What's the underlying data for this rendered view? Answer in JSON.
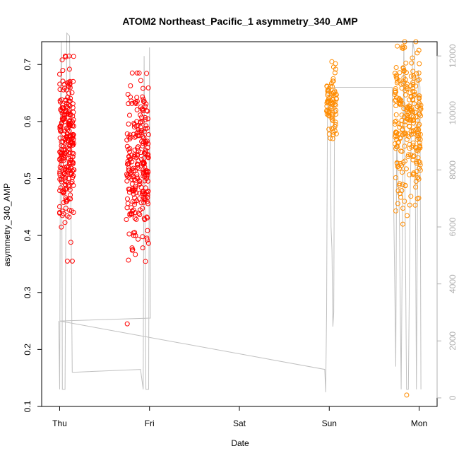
{
  "chart_data": {
    "type": "scatter",
    "title": "ATOM2 Northeast_Pacific_1 asymmetry_340_AMP",
    "xlabel": "Date",
    "ylabel": "asymmetry_340_AMP",
    "x_ticks": [
      {
        "label": "Thu",
        "day": 0
      },
      {
        "label": "Fri",
        "day": 1
      },
      {
        "label": "Sat",
        "day": 2
      },
      {
        "label": "Sun",
        "day": 3
      },
      {
        "label": "Mon",
        "day": 4
      }
    ],
    "xlim": [
      -0.2,
      4.2
    ],
    "ylim": [
      0.1,
      0.74
    ],
    "y_ticks": [
      0.1,
      0.2,
      0.3,
      0.4,
      0.5,
      0.6,
      0.7
    ],
    "y2_ticks": [
      0,
      2000,
      4000,
      6000,
      8000,
      10000,
      12000
    ],
    "y2lim": [
      -300,
      12500
    ],
    "colors": {
      "series_red": "#ff0000",
      "series_orange": "#ff8c00",
      "altitude_line": "#c0c0c0",
      "axis": "#000000",
      "right_axis": "#b0b0b0"
    },
    "series": [
      {
        "color": "red",
        "clusters": [
          {
            "day_start": 0.0,
            "day_end": 0.16,
            "y_mean": 0.56,
            "y_sd": 0.07,
            "y_min": 0.355,
            "y_max": 0.715,
            "n": 260
          },
          {
            "day_start": 0.74,
            "day_end": 0.99,
            "y_mean": 0.52,
            "y_sd": 0.075,
            "y_min": 0.245,
            "y_max": 0.685,
            "n": 260
          }
        ]
      },
      {
        "color": "orange",
        "clusters": [
          {
            "day_start": 2.97,
            "day_end": 3.08,
            "y_mean": 0.635,
            "y_sd": 0.025,
            "y_min": 0.57,
            "y_max": 0.705,
            "n": 80
          },
          {
            "day_start": 3.73,
            "day_end": 4.02,
            "y_mean": 0.6,
            "y_sd": 0.07,
            "y_min": 0.12,
            "y_max": 0.74,
            "n": 260
          }
        ]
      }
    ],
    "altitude_line": [
      [
        -0.01,
        2700
      ],
      [
        0.0,
        300
      ],
      [
        0.01,
        10500
      ],
      [
        0.02,
        12500
      ],
      [
        0.03,
        300
      ],
      [
        0.06,
        300
      ],
      [
        0.08,
        12800
      ],
      [
        0.11,
        12700
      ],
      [
        0.14,
        900
      ],
      [
        0.16,
        900
      ],
      [
        0.9,
        1000
      ],
      [
        0.93,
        300
      ],
      [
        0.94,
        12000
      ],
      [
        0.96,
        300
      ],
      [
        0.99,
        300
      ],
      [
        1.0,
        12300
      ],
      [
        1.01,
        2800
      ],
      [
        0.0,
        2700
      ],
      [
        2.95,
        1000
      ],
      [
        2.96,
        200
      ],
      [
        2.97,
        3000
      ],
      [
        2.98,
        10000
      ],
      [
        2.99,
        11000
      ],
      [
        3.0,
        10900
      ],
      [
        3.01,
        10800
      ],
      [
        3.02,
        6000
      ],
      [
        3.03,
        5200
      ],
      [
        3.04,
        2500
      ],
      [
        3.05,
        3000
      ],
      [
        3.06,
        10900
      ],
      [
        3.7,
        10900
      ],
      [
        3.74,
        1100
      ],
      [
        3.75,
        9000
      ],
      [
        3.78,
        6500
      ],
      [
        3.8,
        300
      ],
      [
        3.83,
        12400
      ],
      [
        3.86,
        300
      ],
      [
        3.88,
        300
      ],
      [
        3.9,
        7000
      ],
      [
        3.93,
        12500
      ],
      [
        3.95,
        12100
      ],
      [
        3.97,
        300
      ],
      [
        3.99,
        11500
      ],
      [
        4.01,
        10900
      ],
      [
        4.02,
        300
      ]
    ]
  }
}
